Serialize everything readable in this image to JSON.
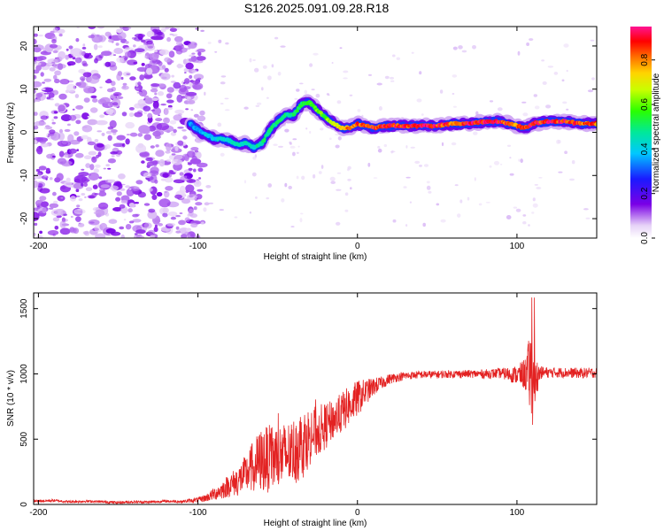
{
  "title": "S126.2025.091.09.28.R18",
  "colors": {
    "snr_line": "#e32222",
    "axis": "#000000",
    "background": "#ffffff"
  },
  "chart_data": [
    {
      "type": "heatmap",
      "title": "S126.2025.091.09.28.R18",
      "xlabel": "Height of straight line (km)",
      "ylabel": "Frequency (Hz)",
      "xlim": [
        -203,
        150
      ],
      "ylim": [
        -24.5,
        24.5
      ],
      "xticks": [
        -200,
        -100,
        0,
        100
      ],
      "xtick_labels": [
        "-200",
        "-100",
        "0",
        "100"
      ],
      "yticks": [
        -20,
        -10,
        0,
        10,
        20
      ],
      "ytick_labels": [
        "-20",
        "-10",
        "0",
        "10",
        "20"
      ],
      "colorbar": {
        "label": "Normalized spectral amplitude",
        "range": [
          0.0,
          0.95
        ],
        "ticks": [
          0.0,
          0.2,
          0.4,
          0.6,
          0.8
        ],
        "tick_labels": [
          "0.0",
          "0.2",
          "0.4",
          "0.6",
          "0.8"
        ],
        "colormap": "rainbow (white, violet, blue, cyan, green, yellow, orange, red, magenta)"
      },
      "noise_region": {
        "x_range": [
          -203,
          -97
        ],
        "amplitude": "low (0.0-0.15)"
      },
      "ridge": {
        "description": "frequency ridge of peak spectral amplitude",
        "x": [
          -105,
          -100,
          -95,
          -90,
          -85,
          -80,
          -75,
          -70,
          -65,
          -60,
          -55,
          -50,
          -45,
          -40,
          -35,
          -30,
          -25,
          -20,
          -15,
          -10,
          -5,
          0,
          10,
          20,
          30,
          40,
          50,
          60,
          70,
          80,
          90,
          100,
          105,
          110,
          120,
          130,
          140,
          150
        ],
        "y": [
          2.0,
          0.5,
          -0.5,
          -1.5,
          -1.5,
          -2.0,
          -3.0,
          -2.5,
          -3.5,
          -2.5,
          0.5,
          2.5,
          4.0,
          4.0,
          6.5,
          7.0,
          5.0,
          3.5,
          2.0,
          1.0,
          1.0,
          2.0,
          1.0,
          1.5,
          1.5,
          1.5,
          1.5,
          2.0,
          2.0,
          2.5,
          2.5,
          1.5,
          1.0,
          2.0,
          2.5,
          2.5,
          2.0,
          2.0
        ],
        "amplitude": [
          0.35,
          0.35,
          0.4,
          0.4,
          0.45,
          0.45,
          0.45,
          0.45,
          0.45,
          0.5,
          0.5,
          0.5,
          0.5,
          0.5,
          0.55,
          0.55,
          0.6,
          0.6,
          0.7,
          0.75,
          0.8,
          0.85,
          0.9,
          0.9,
          0.9,
          0.9,
          0.9,
          0.85,
          0.9,
          0.9,
          0.9,
          0.85,
          0.85,
          0.9,
          0.9,
          0.9,
          0.85,
          0.85
        ]
      }
    },
    {
      "type": "line",
      "xlabel": "Height of straight line (km)",
      "ylabel": "SNR (10 * v/v)",
      "xlim": [
        -203,
        150
      ],
      "ylim": [
        0,
        1620
      ],
      "xticks": [
        -200,
        -100,
        0,
        100
      ],
      "xtick_labels": [
        "-200",
        "-100",
        "0",
        "100"
      ],
      "yticks": [
        0,
        500,
        1000,
        1500
      ],
      "ytick_labels": [
        "0",
        "500",
        "1000",
        "1500"
      ],
      "series": [
        {
          "color": "#e32222",
          "x": [
            -203,
            -190,
            -180,
            -170,
            -160,
            -150,
            -140,
            -130,
            -120,
            -110,
            -100,
            -95,
            -90,
            -85,
            -80,
            -75,
            -70,
            -65,
            -60,
            -55,
            -50,
            -45,
            -40,
            -35,
            -30,
            -25,
            -20,
            -15,
            -10,
            -5,
            0,
            5,
            10,
            15,
            20,
            25,
            30,
            40,
            50,
            60,
            70,
            80,
            90,
            100,
            105,
            108,
            110,
            111,
            112,
            115,
            120,
            130,
            140,
            150
          ],
          "y": [
            25,
            30,
            20,
            25,
            20,
            15,
            20,
            18,
            25,
            22,
            35,
            50,
            80,
            110,
            150,
            180,
            230,
            300,
            340,
            350,
            360,
            380,
            410,
            460,
            520,
            560,
            600,
            650,
            700,
            760,
            810,
            860,
            900,
            930,
            960,
            975,
            985,
            995,
            995,
            1000,
            1000,
            1000,
            1005,
            990,
            1000,
            1000,
            1020,
            1000,
            980,
            1010,
            1010,
            1010,
            1005,
            1010
          ],
          "noise": [
            10,
            10,
            10,
            10,
            10,
            10,
            10,
            10,
            10,
            10,
            20,
            30,
            50,
            70,
            90,
            120,
            150,
            200,
            250,
            260,
            270,
            250,
            260,
            280,
            220,
            200,
            180,
            150,
            160,
            150,
            140,
            100,
            70,
            50,
            40,
            35,
            30,
            30,
            30,
            30,
            30,
            35,
            40,
            70,
            120,
            300,
            450,
            300,
            150,
            50,
            40,
            40,
            40,
            40
          ]
        }
      ]
    }
  ]
}
